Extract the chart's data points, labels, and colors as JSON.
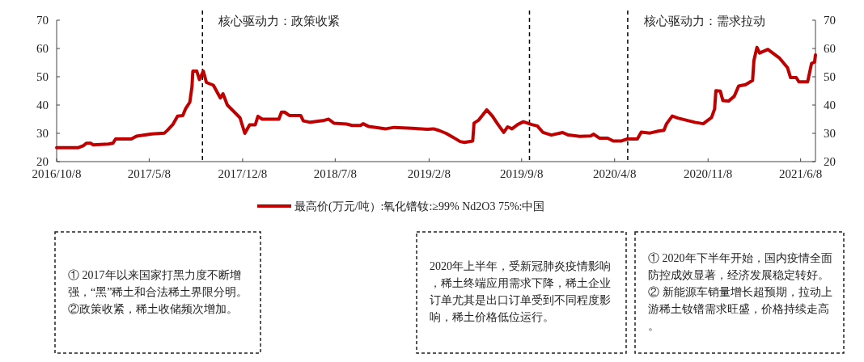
{
  "chart_data": {
    "type": "line",
    "x": [
      "2016-10-08",
      "2016-11-26",
      "2016-12-09",
      "2016-12-15",
      "2016-12-25",
      "2016-12-31",
      "2017-02-04",
      "2017-02-14",
      "2017-02-20",
      "2017-03-28",
      "2017-04-09",
      "2017-05-14",
      "2017-06-12",
      "2017-06-19",
      "2017-07-01",
      "2017-07-12",
      "2017-07-24",
      "2017-07-30",
      "2017-08-09",
      "2017-08-14",
      "2017-08-16",
      "2017-08-25",
      "2017-08-31",
      "2017-09-09",
      "2017-09-16",
      "2017-10-02",
      "2017-10-18",
      "2017-10-24",
      "2017-11-03",
      "2017-11-16",
      "2017-12-02",
      "2017-12-13",
      "2017-12-24",
      "2018-01-06",
      "2018-01-12",
      "2018-01-22",
      "2018-03-01",
      "2018-03-07",
      "2018-03-14",
      "2018-03-25",
      "2018-04-20",
      "2018-04-26",
      "2018-05-12",
      "2018-06-13",
      "2018-06-23",
      "2018-07-05",
      "2018-08-03",
      "2018-08-16",
      "2018-09-04",
      "2018-09-10",
      "2018-09-23",
      "2018-11-01",
      "2018-11-20",
      "2018-12-31",
      "2019-02-04",
      "2019-02-18",
      "2019-03-03",
      "2019-03-19",
      "2019-04-04",
      "2019-04-20",
      "2019-04-30",
      "2019-05-19",
      "2019-05-22",
      "2019-06-01",
      "2019-06-20",
      "2019-07-03",
      "2019-07-16",
      "2019-07-29",
      "2019-08-07",
      "2019-08-17",
      "2019-08-30",
      "2019-09-12",
      "2019-10-01",
      "2019-10-14",
      "2019-10-27",
      "2019-11-15",
      "2019-12-11",
      "2019-12-24",
      "2020-01-19",
      "2020-02-13",
      "2020-02-20",
      "2020-03-04",
      "2020-03-23",
      "2020-04-05",
      "2020-04-24",
      "2020-05-07",
      "2020-05-30",
      "2020-06-08",
      "2020-06-28",
      "2020-07-17",
      "2020-07-30",
      "2020-08-05",
      "2020-08-18",
      "2020-08-31",
      "2020-09-20",
      "2020-10-09",
      "2020-10-28",
      "2020-11-16",
      "2020-11-23",
      "2020-11-26",
      "2020-12-06",
      "2020-12-12",
      "2020-12-25",
      "2021-01-07",
      "2021-01-17",
      "2021-02-02",
      "2021-02-18",
      "2021-02-21",
      "2021-02-28",
      "2021-03-06",
      "2021-03-25",
      "2021-04-20",
      "2021-05-09",
      "2021-05-16",
      "2021-05-29",
      "2021-06-04",
      "2021-06-24",
      "2021-07-03",
      "2021-07-10",
      "2021-07-12"
    ],
    "series": [
      {
        "name": "最高价(万元/吨）:氧化镨钕:≥99% Nd2O3 75%:中国",
        "color": "#c00000",
        "values": [
          24.9,
          24.9,
          25.7,
          26.5,
          26.5,
          25.9,
          26.2,
          26.5,
          28,
          28,
          29,
          29.8,
          30.1,
          31.1,
          33.1,
          36.1,
          36.3,
          38.6,
          41,
          46.5,
          52,
          52,
          49,
          52,
          48,
          47,
          42.5,
          44,
          40,
          38,
          35.5,
          30,
          33,
          33,
          36,
          35,
          35,
          37.5,
          37.5,
          36.3,
          36.3,
          34.4,
          33.9,
          34.6,
          35,
          33.6,
          33.3,
          32.8,
          32.8,
          33.4,
          32.4,
          31.6,
          32.1,
          31.8,
          31.4,
          31.6,
          31,
          30,
          28.6,
          27.1,
          26.8,
          27.3,
          33.6,
          34.6,
          38.3,
          36.1,
          33.1,
          30.3,
          32.3,
          31.6,
          33.1,
          34.1,
          33.1,
          32.6,
          30.3,
          29.4,
          30.3,
          29.4,
          28.9,
          29.1,
          29.7,
          28.3,
          28.3,
          27.3,
          27.3,
          28,
          28,
          30.4,
          30.1,
          30.8,
          31.1,
          33.4,
          36.1,
          35.4,
          34.6,
          33.9,
          33.4,
          35.6,
          38.6,
          45.1,
          44.9,
          41.6,
          41.4,
          43.1,
          46.7,
          47.2,
          48.7,
          55.7,
          60.4,
          58.4,
          59.7,
          56.7,
          53.2,
          49.7,
          49.7,
          48.2,
          48.2,
          54.7,
          55.2,
          57.7
        ]
      }
    ],
    "xlim": [
      "2016-10-08",
      "2021-07-12"
    ],
    "xticks": [
      {
        "value": "2016-10-08",
        "label": "2016/10/8"
      },
      {
        "value": "2017-05-08",
        "label": "2017/5/8"
      },
      {
        "value": "2017-12-08",
        "label": "2017/12/8"
      },
      {
        "value": "2018-07-08",
        "label": "2018/7/8"
      },
      {
        "value": "2019-02-08",
        "label": "2019/2/8"
      },
      {
        "value": "2019-09-08",
        "label": "2019/9/8"
      },
      {
        "value": "2020-04-08",
        "label": "2020/4/8"
      },
      {
        "value": "2020-11-08",
        "label": "2020/11/8"
      },
      {
        "value": "2021-06-08",
        "label": "2021/6/8"
      }
    ],
    "ylim": [
      20,
      70
    ],
    "yticks": [
      20,
      30,
      40,
      50,
      60,
      70
    ],
    "y2lim": [
      20,
      70
    ],
    "y2ticks": [
      20,
      30,
      40,
      50,
      60,
      70
    ],
    "ref_lines": [
      {
        "axis": "x",
        "value": "2017-09-07",
        "label": "核心驱动力：政策收紧",
        "line_style": "dashed",
        "color": "#000000"
      },
      {
        "axis": "x",
        "value": "2019-09-26",
        "label": null,
        "line_style": "dashed",
        "color": "#000000"
      },
      {
        "axis": "x",
        "value": "2020-05-08",
        "label": "核心驱动力：需求拉动",
        "line_style": "dashed",
        "color": "#000000"
      }
    ],
    "annotations": [
      "① 2017年以来国家打黑力度不断增强，“黑”稀土和合法稀土界限分明。\n②政策收紧，稀土收储频次增加。",
      "2020年上半年，受新冠肺炎疫情影响，稀土终端应用需求下降，稀土企业订单尤其是出口订单受到不同程度影响，稀土价格低位运行。",
      "① 2020年下半年开始，国内疫情全面防控成效显著，经济发展稳定转好。\n② 新能源车销量增长超预期，拉动上游稀土钕镨需求旺盛，价格持续走高。"
    ],
    "legend": "bottom",
    "grid": false,
    "marker": "none",
    "line_style": "solid"
  }
}
